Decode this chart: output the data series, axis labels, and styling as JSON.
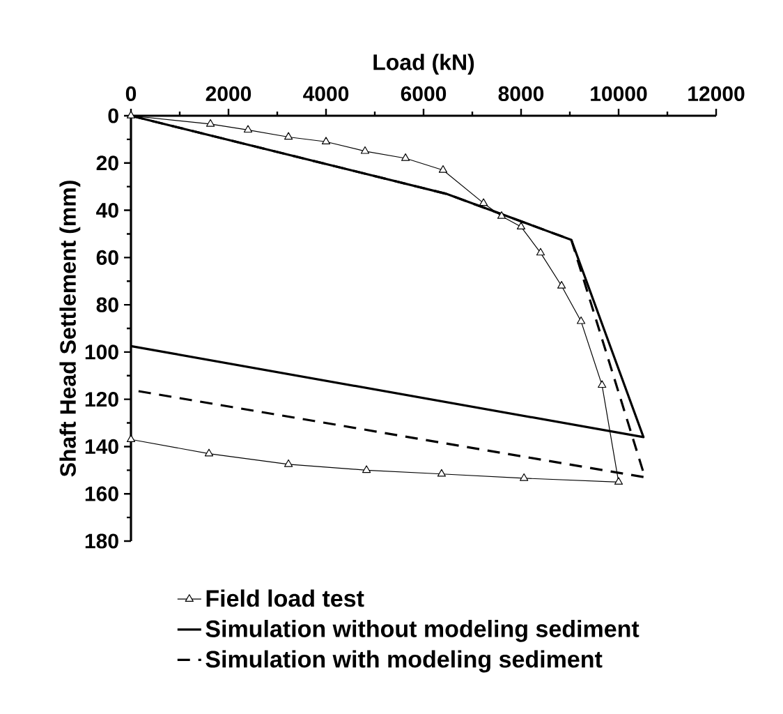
{
  "chart_data": {
    "type": "line",
    "xlabel": "Load (kN)",
    "ylabel": "Shaft Head Settlement (mm)",
    "xlim": [
      0,
      12000
    ],
    "xticks": [
      0,
      2000,
      4000,
      6000,
      8000,
      10000,
      12000
    ],
    "ylim": [
      180,
      0
    ],
    "yticks": [
      0,
      20,
      40,
      60,
      80,
      100,
      120,
      140,
      160,
      180
    ],
    "legend": "bottom",
    "grid": false,
    "series": [
      {
        "name": "Field load test",
        "color": "#000000",
        "marker": "triangle",
        "line_style": "solid",
        "x": [
          0,
          1630,
          2400,
          3230,
          4000,
          4800,
          5630,
          6400,
          7230,
          7600,
          8000,
          8400,
          8830,
          9230,
          9660,
          10000,
          8060,
          6370,
          4830,
          3230,
          1600,
          0
        ],
        "values": [
          0,
          3.5,
          6,
          9,
          11,
          15,
          18,
          23,
          37,
          42.5,
          47,
          58,
          72,
          87,
          114,
          155,
          153.4,
          151.6,
          150,
          147.5,
          143,
          137
        ]
      },
      {
        "name": "Simulation without modeling sediment",
        "color": "#000000",
        "marker": "none",
        "line_style": "solid",
        "x": [
          0,
          6460,
          9030,
          10510,
          0
        ],
        "values": [
          0,
          33,
          52.5,
          136,
          97.5
        ]
      },
      {
        "name": "Simulation with modeling sediment",
        "color": "#000000",
        "marker": "none",
        "line_style": "dashed",
        "x": [
          0,
          6460,
          9030,
          10540,
          0
        ],
        "values": [
          0,
          33,
          52.5,
          153,
          116
        ]
      }
    ]
  }
}
